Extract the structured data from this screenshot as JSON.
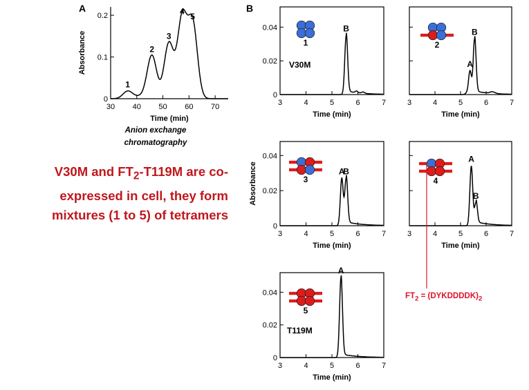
{
  "panel_letters": {
    "a": "A",
    "b": "B"
  },
  "caption_html": "V30M and FT<sub>2</sub>-T119M are co-expressed in cell, they form mixtures (1 to 5) of tetramers",
  "method_label": "Anion exchange chromatography",
  "ft2_note_html": "FT<sub>2</sub> = (DYKDDDDK)<sub>2</sub>",
  "colors": {
    "blue_subunit": "#3a6fd8",
    "red_subunit": "#dd1c1c",
    "caption": "#c0171d",
    "ft2_line": "#e0122b"
  },
  "chart_data": [
    {
      "id": "A",
      "type": "line",
      "xlabel": "Time (min)",
      "ylabel": "Absorbance",
      "xlim": [
        30,
        75
      ],
      "ylim": [
        0,
        0.22
      ],
      "xticks": [
        30,
        40,
        50,
        60,
        70
      ],
      "yticks": [
        0,
        0.1,
        0.2
      ],
      "ytick_labels": [
        "0",
        "0.1",
        "0.2"
      ],
      "peaks": [
        {
          "label": "1",
          "x": 36.5,
          "y": 0.017
        },
        {
          "label": "2",
          "x": 45.8,
          "y": 0.102
        },
        {
          "label": "3",
          "x": 52.3,
          "y": 0.133
        },
        {
          "label": "4",
          "x": 57.4,
          "y": 0.193
        },
        {
          "label": "5",
          "x": 61.4,
          "y": 0.18
        }
      ]
    },
    {
      "id": "B1",
      "type": "line",
      "xlabel": "Time (min)",
      "ylabel": "",
      "xlim": [
        3,
        7
      ],
      "ylim": [
        0,
        0.052
      ],
      "xticks": [
        3,
        4,
        5,
        6,
        7
      ],
      "yticks": [
        0,
        0.02,
        0.04
      ],
      "ytick_labels": [
        "0",
        "0.02",
        "0.04"
      ],
      "label": "V30M",
      "tetramer": "1",
      "tetramer_pattern": [
        "B",
        "B",
        "B",
        "B"
      ],
      "tags": [],
      "peaks": [
        {
          "label": "B",
          "x": 5.55,
          "y": 0.035
        }
      ]
    },
    {
      "id": "B2",
      "type": "line",
      "xlabel": "Time (min)",
      "ylabel": "",
      "xlim": [
        3,
        7
      ],
      "ylim": [
        0,
        0.052
      ],
      "xticks": [
        3,
        4,
        5,
        6,
        7
      ],
      "yticks": [
        0,
        0.02,
        0.04
      ],
      "ytick_labels": [
        "",
        "",
        ""
      ],
      "label": "",
      "tetramer": "2",
      "tetramer_pattern": [
        "B",
        "B",
        "R",
        "B"
      ],
      "tags": [
        "bottom"
      ],
      "peaks": [
        {
          "label": "A",
          "x": 5.37,
          "y": 0.014
        },
        {
          "label": "B",
          "x": 5.55,
          "y": 0.033
        }
      ]
    },
    {
      "id": "B3",
      "type": "line",
      "xlabel": "Time (min)",
      "ylabel": "Absorbance",
      "xlim": [
        3,
        7
      ],
      "ylim": [
        0,
        0.048
      ],
      "xticks": [
        3,
        4,
        5,
        6,
        7
      ],
      "yticks": [
        0,
        0.02,
        0.04
      ],
      "ytick_labels": [
        "0",
        "0.02",
        "0.04"
      ],
      "label": "",
      "tetramer": "3",
      "tetramer_pattern": [
        "B",
        "R",
        "R",
        "B"
      ],
      "tags": [
        "top",
        "bottom"
      ],
      "peaks": [
        {
          "label": "A",
          "x": 5.38,
          "y": 0.027
        },
        {
          "label": "B",
          "x": 5.55,
          "y": 0.027
        }
      ]
    },
    {
      "id": "B4",
      "type": "line",
      "xlabel": "Time (min)",
      "ylabel": "",
      "xlim": [
        3,
        7
      ],
      "ylim": [
        0,
        0.048
      ],
      "xticks": [
        3,
        4,
        5,
        6,
        7
      ],
      "yticks": [
        0,
        0.02,
        0.04
      ],
      "ytick_labels": [
        "",
        "",
        ""
      ],
      "label": "",
      "tetramer": "4",
      "tetramer_pattern": [
        "B",
        "R",
        "R",
        "R"
      ],
      "tags": [
        "top",
        "bottom"
      ],
      "peaks": [
        {
          "label": "A",
          "x": 5.42,
          "y": 0.034
        },
        {
          "label": "B",
          "x": 5.6,
          "y": 0.013
        }
      ]
    },
    {
      "id": "B5",
      "type": "line",
      "xlabel": "Time (min)",
      "ylabel": "",
      "xlim": [
        3,
        7
      ],
      "ylim": [
        0,
        0.052
      ],
      "xticks": [
        3,
        4,
        5,
        6,
        7
      ],
      "yticks": [
        0,
        0.02,
        0.04
      ],
      "ytick_labels": [
        "0",
        "0.02",
        "0.04"
      ],
      "label": "T119M",
      "tetramer": "5",
      "tetramer_pattern": [
        "R",
        "R",
        "R",
        "R"
      ],
      "tags": [
        "top",
        "bottom"
      ],
      "peaks": [
        {
          "label": "A",
          "x": 5.35,
          "y": 0.049
        }
      ]
    }
  ]
}
